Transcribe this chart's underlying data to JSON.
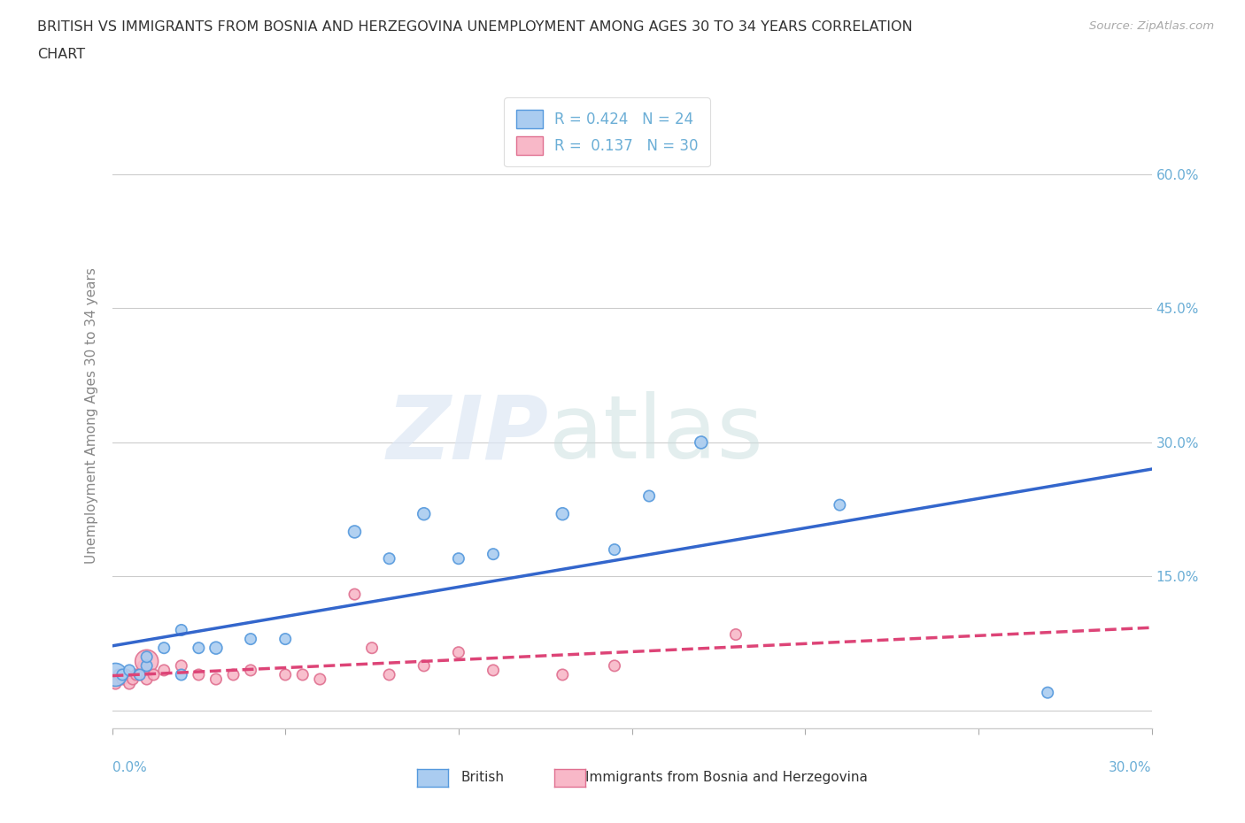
{
  "title_line1": "BRITISH VS IMMIGRANTS FROM BOSNIA AND HERZEGOVINA UNEMPLOYMENT AMONG AGES 30 TO 34 YEARS CORRELATION",
  "title_line2": "CHART",
  "source": "Source: ZipAtlas.com",
  "ylabel": "Unemployment Among Ages 30 to 34 years",
  "yticks": [
    0.0,
    0.15,
    0.3,
    0.45,
    0.6
  ],
  "xlim": [
    0.0,
    0.3
  ],
  "ylim": [
    -0.02,
    0.68
  ],
  "british_R": 0.424,
  "british_N": 24,
  "immigrant_R": 0.137,
  "immigrant_N": 30,
  "british_color": "#aaccf0",
  "british_edge_color": "#5599dd",
  "british_line_color": "#3366cc",
  "immigrant_color": "#f8b8c8",
  "immigrant_edge_color": "#e07090",
  "immigrant_line_color": "#dd4477",
  "legend_label_british": "British",
  "legend_label_immigrant": "Immigrants from Bosnia and Herzegovina",
  "background_color": "#ffffff",
  "grid_color": "#cccccc",
  "title_color": "#333333",
  "axis_label_color": "#888888",
  "right_tick_color": "#6baed6",
  "british_x": [
    0.001,
    0.003,
    0.005,
    0.008,
    0.01,
    0.01,
    0.015,
    0.02,
    0.02,
    0.025,
    0.03,
    0.04,
    0.05,
    0.07,
    0.08,
    0.09,
    0.1,
    0.11,
    0.13,
    0.145,
    0.155,
    0.17,
    0.21,
    0.27
  ],
  "british_y": [
    0.04,
    0.04,
    0.045,
    0.04,
    0.05,
    0.06,
    0.07,
    0.04,
    0.09,
    0.07,
    0.07,
    0.08,
    0.08,
    0.2,
    0.17,
    0.22,
    0.17,
    0.175,
    0.22,
    0.18,
    0.24,
    0.3,
    0.23,
    0.02
  ],
  "british_sizes": [
    350,
    80,
    80,
    80,
    80,
    80,
    80,
    80,
    80,
    80,
    100,
    80,
    80,
    100,
    80,
    100,
    80,
    80,
    100,
    80,
    80,
    100,
    80,
    80
  ],
  "immigrant_x": [
    0.001,
    0.002,
    0.003,
    0.004,
    0.005,
    0.006,
    0.007,
    0.008,
    0.009,
    0.01,
    0.01,
    0.012,
    0.015,
    0.02,
    0.025,
    0.03,
    0.035,
    0.04,
    0.05,
    0.055,
    0.06,
    0.07,
    0.075,
    0.08,
    0.09,
    0.1,
    0.11,
    0.13,
    0.145,
    0.18
  ],
  "immigrant_y": [
    0.03,
    0.04,
    0.035,
    0.04,
    0.03,
    0.035,
    0.04,
    0.04,
    0.05,
    0.055,
    0.035,
    0.04,
    0.045,
    0.05,
    0.04,
    0.035,
    0.04,
    0.045,
    0.04,
    0.04,
    0.035,
    0.13,
    0.07,
    0.04,
    0.05,
    0.065,
    0.045,
    0.04,
    0.05,
    0.085
  ],
  "immigrant_sizes": [
    80,
    80,
    80,
    80,
    80,
    80,
    80,
    80,
    80,
    350,
    80,
    80,
    80,
    80,
    80,
    80,
    80,
    80,
    80,
    80,
    80,
    80,
    80,
    80,
    80,
    80,
    80,
    80,
    80,
    80
  ]
}
